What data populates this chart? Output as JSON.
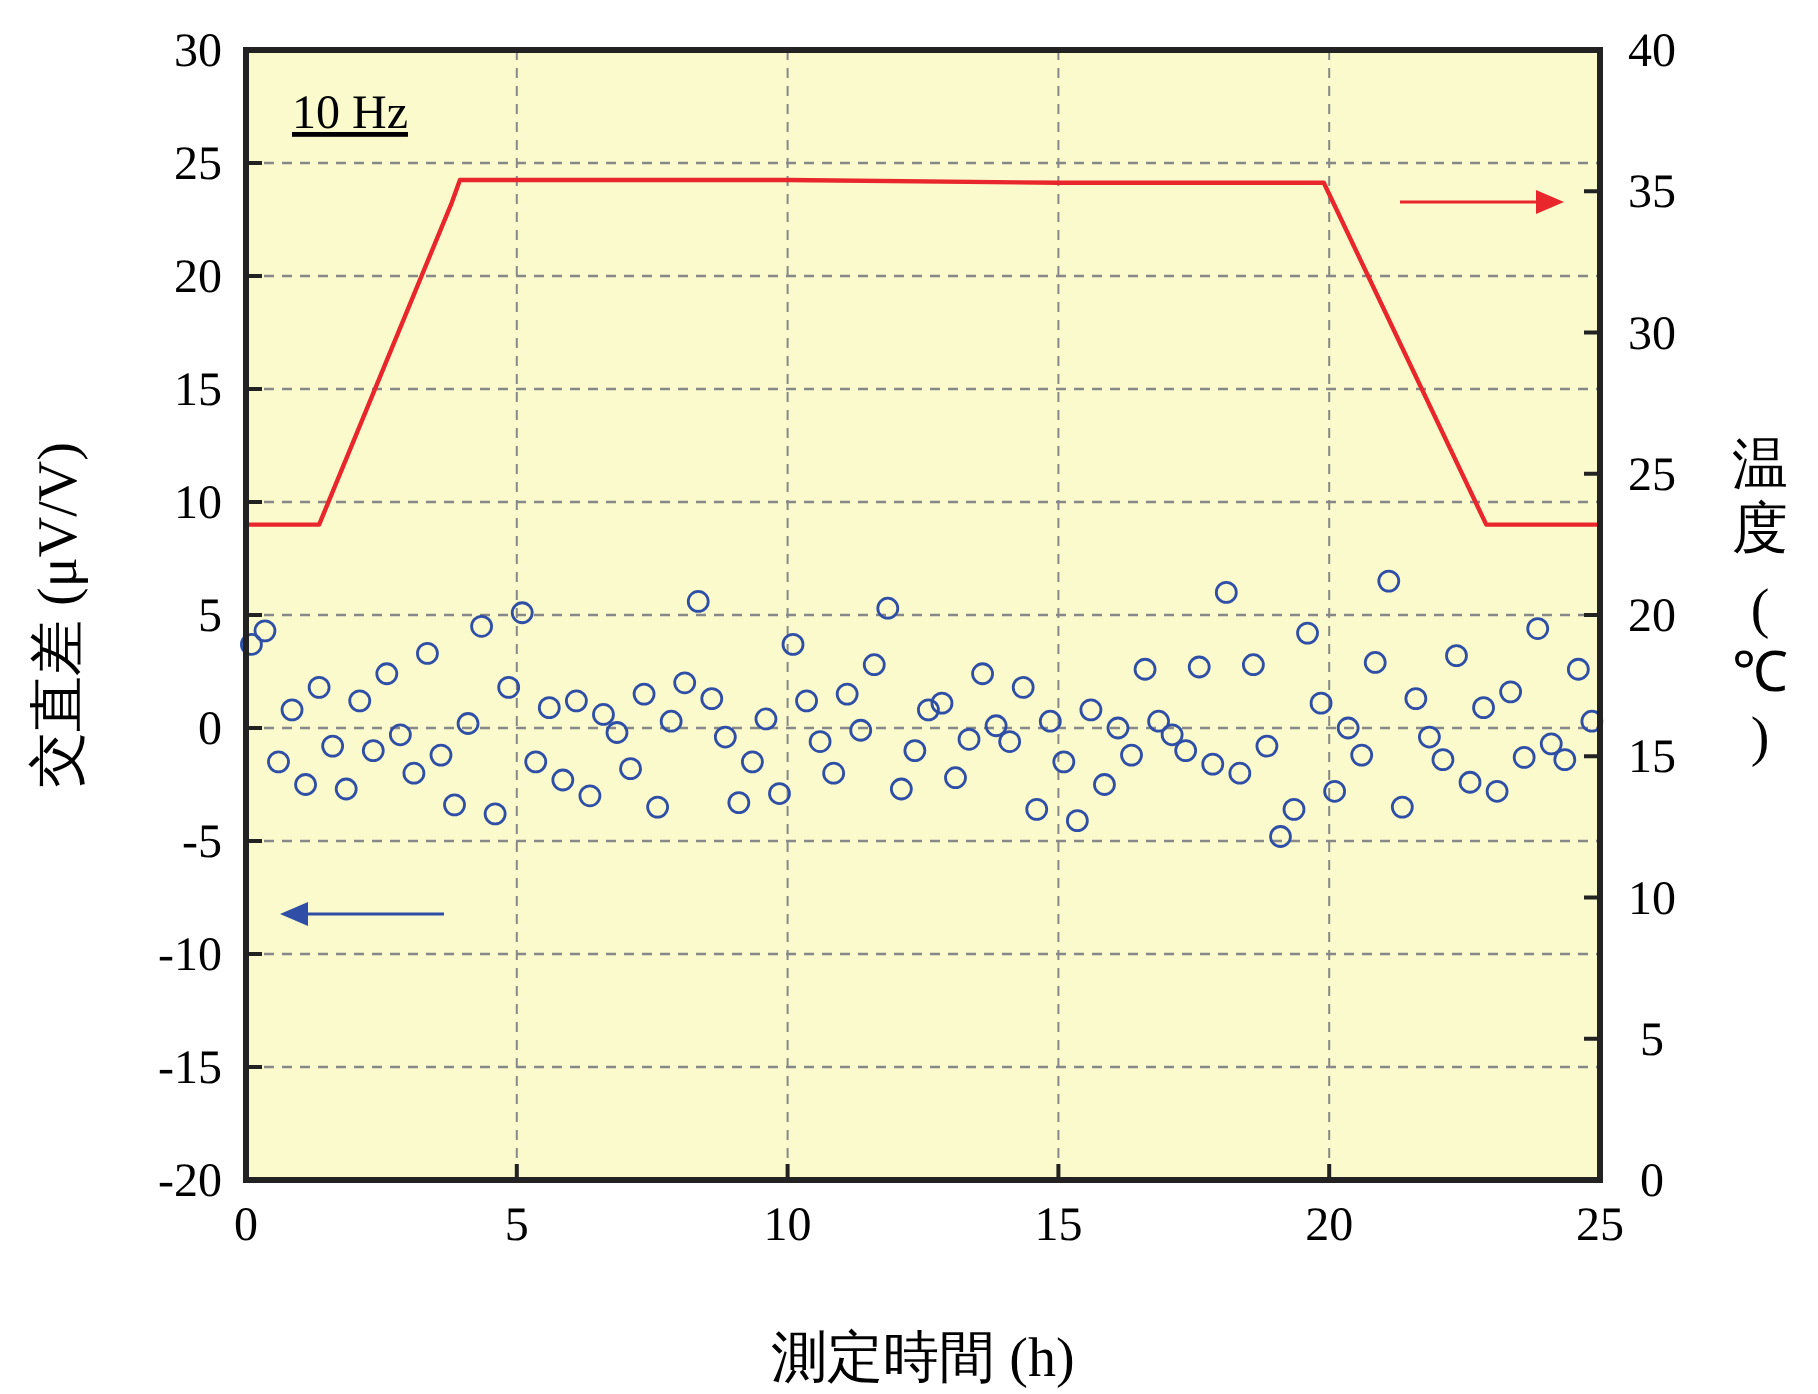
{
  "chart_data": {
    "type": "scatter",
    "xlabel": "測定時間 (h)",
    "ylabel": "交直差 (μV/V)",
    "y2label": "温度 (℃)",
    "annotations": [
      "10 Hz"
    ],
    "xlim": [
      0,
      25
    ],
    "xticks": [
      0,
      5,
      10,
      15,
      20,
      25
    ],
    "ylim": [
      -20,
      30
    ],
    "yticks": [
      -20,
      -15,
      -10,
      -5,
      0,
      5,
      10,
      15,
      20,
      25,
      30
    ],
    "y2lim": [
      0,
      40
    ],
    "y2ticks": [
      0,
      5,
      10,
      15,
      20,
      25,
      30,
      35,
      40
    ],
    "grid": true,
    "series": [
      {
        "marker": "circle",
        "axis": "y",
        "color": "#2f4fa6",
        "x": [
          0.1,
          0.35,
          0.6,
          0.85,
          1.1,
          1.35,
          1.6,
          1.85,
          2.1,
          2.35,
          2.6,
          2.85,
          3.1,
          3.35,
          3.6,
          3.85,
          4.1,
          4.35,
          4.6,
          4.85,
          5.1,
          5.35,
          5.6,
          5.85,
          6.1,
          6.35,
          6.6,
          6.85,
          7.1,
          7.35,
          7.6,
          7.85,
          8.1,
          8.35,
          8.6,
          8.85,
          9.1,
          9.35,
          9.6,
          9.85,
          10.1,
          10.35,
          10.6,
          10.85,
          11.1,
          11.35,
          11.6,
          11.85,
          12.1,
          12.35,
          12.6,
          12.85,
          13.1,
          13.35,
          13.6,
          13.85,
          14.1,
          14.35,
          14.6,
          14.85,
          15.1,
          15.35,
          15.6,
          15.85,
          16.1,
          16.35,
          16.6,
          16.85,
          17.1,
          17.35,
          17.6,
          17.85,
          18.1,
          18.35,
          18.6,
          18.85,
          19.1,
          19.35,
          19.6,
          19.85,
          20.1,
          20.35,
          20.6,
          20.85,
          21.1,
          21.35,
          21.6,
          21.85,
          22.1,
          22.35,
          22.6,
          22.85,
          23.1,
          23.35,
          23.6,
          23.85,
          24.1,
          24.35,
          24.6,
          24.85
        ],
        "values": [
          3.7,
          4.3,
          -1.5,
          0.8,
          -2.5,
          1.8,
          -0.8,
          -2.7,
          1.2,
          -1.0,
          2.4,
          -0.3,
          -2.0,
          3.3,
          -1.2,
          -3.4,
          0.2,
          4.5,
          -3.8,
          1.8,
          5.1,
          -1.5,
          0.9,
          -2.3,
          1.2,
          -3.0,
          0.6,
          -0.2,
          -1.8,
          1.5,
          -3.5,
          0.3,
          2.0,
          5.6,
          1.3,
          -0.4,
          -3.3,
          -1.5,
          0.4,
          -2.9,
          3.7,
          1.2,
          -0.6,
          -2.0,
          1.5,
          -0.1,
          2.8,
          5.3,
          -2.7,
          -1.0,
          0.8,
          1.1,
          -2.2,
          -0.5,
          2.4,
          0.1,
          -0.6,
          1.8,
          -3.6,
          0.3,
          -1.5,
          -4.1,
          0.8,
          -2.5,
          0.0,
          -1.2,
          2.6,
          0.3,
          -0.3,
          -1.0,
          2.7,
          -1.6,
          6.0,
          -2.0,
          2.8,
          -0.8,
          -4.8,
          -3.6,
          4.2,
          1.1,
          -2.8,
          0.0,
          -1.2,
          2.9,
          6.5,
          -3.5,
          1.3,
          -0.4,
          -1.4,
          3.2,
          -2.4,
          0.9,
          -2.8,
          1.6,
          -1.3,
          4.4,
          -0.7,
          -1.4,
          2.6,
          0.3
        ]
      },
      {
        "type": "line",
        "marker": "none",
        "axis": "y2",
        "color": "#e8262b",
        "x": [
          0,
          1.35,
          3.8,
          3.95,
          10,
          15,
          19.9,
          22.9,
          25
        ],
        "values": [
          23.2,
          23.2,
          34.6,
          35.4,
          35.4,
          35.3,
          35.3,
          23.2,
          23.2
        ]
      }
    ]
  }
}
